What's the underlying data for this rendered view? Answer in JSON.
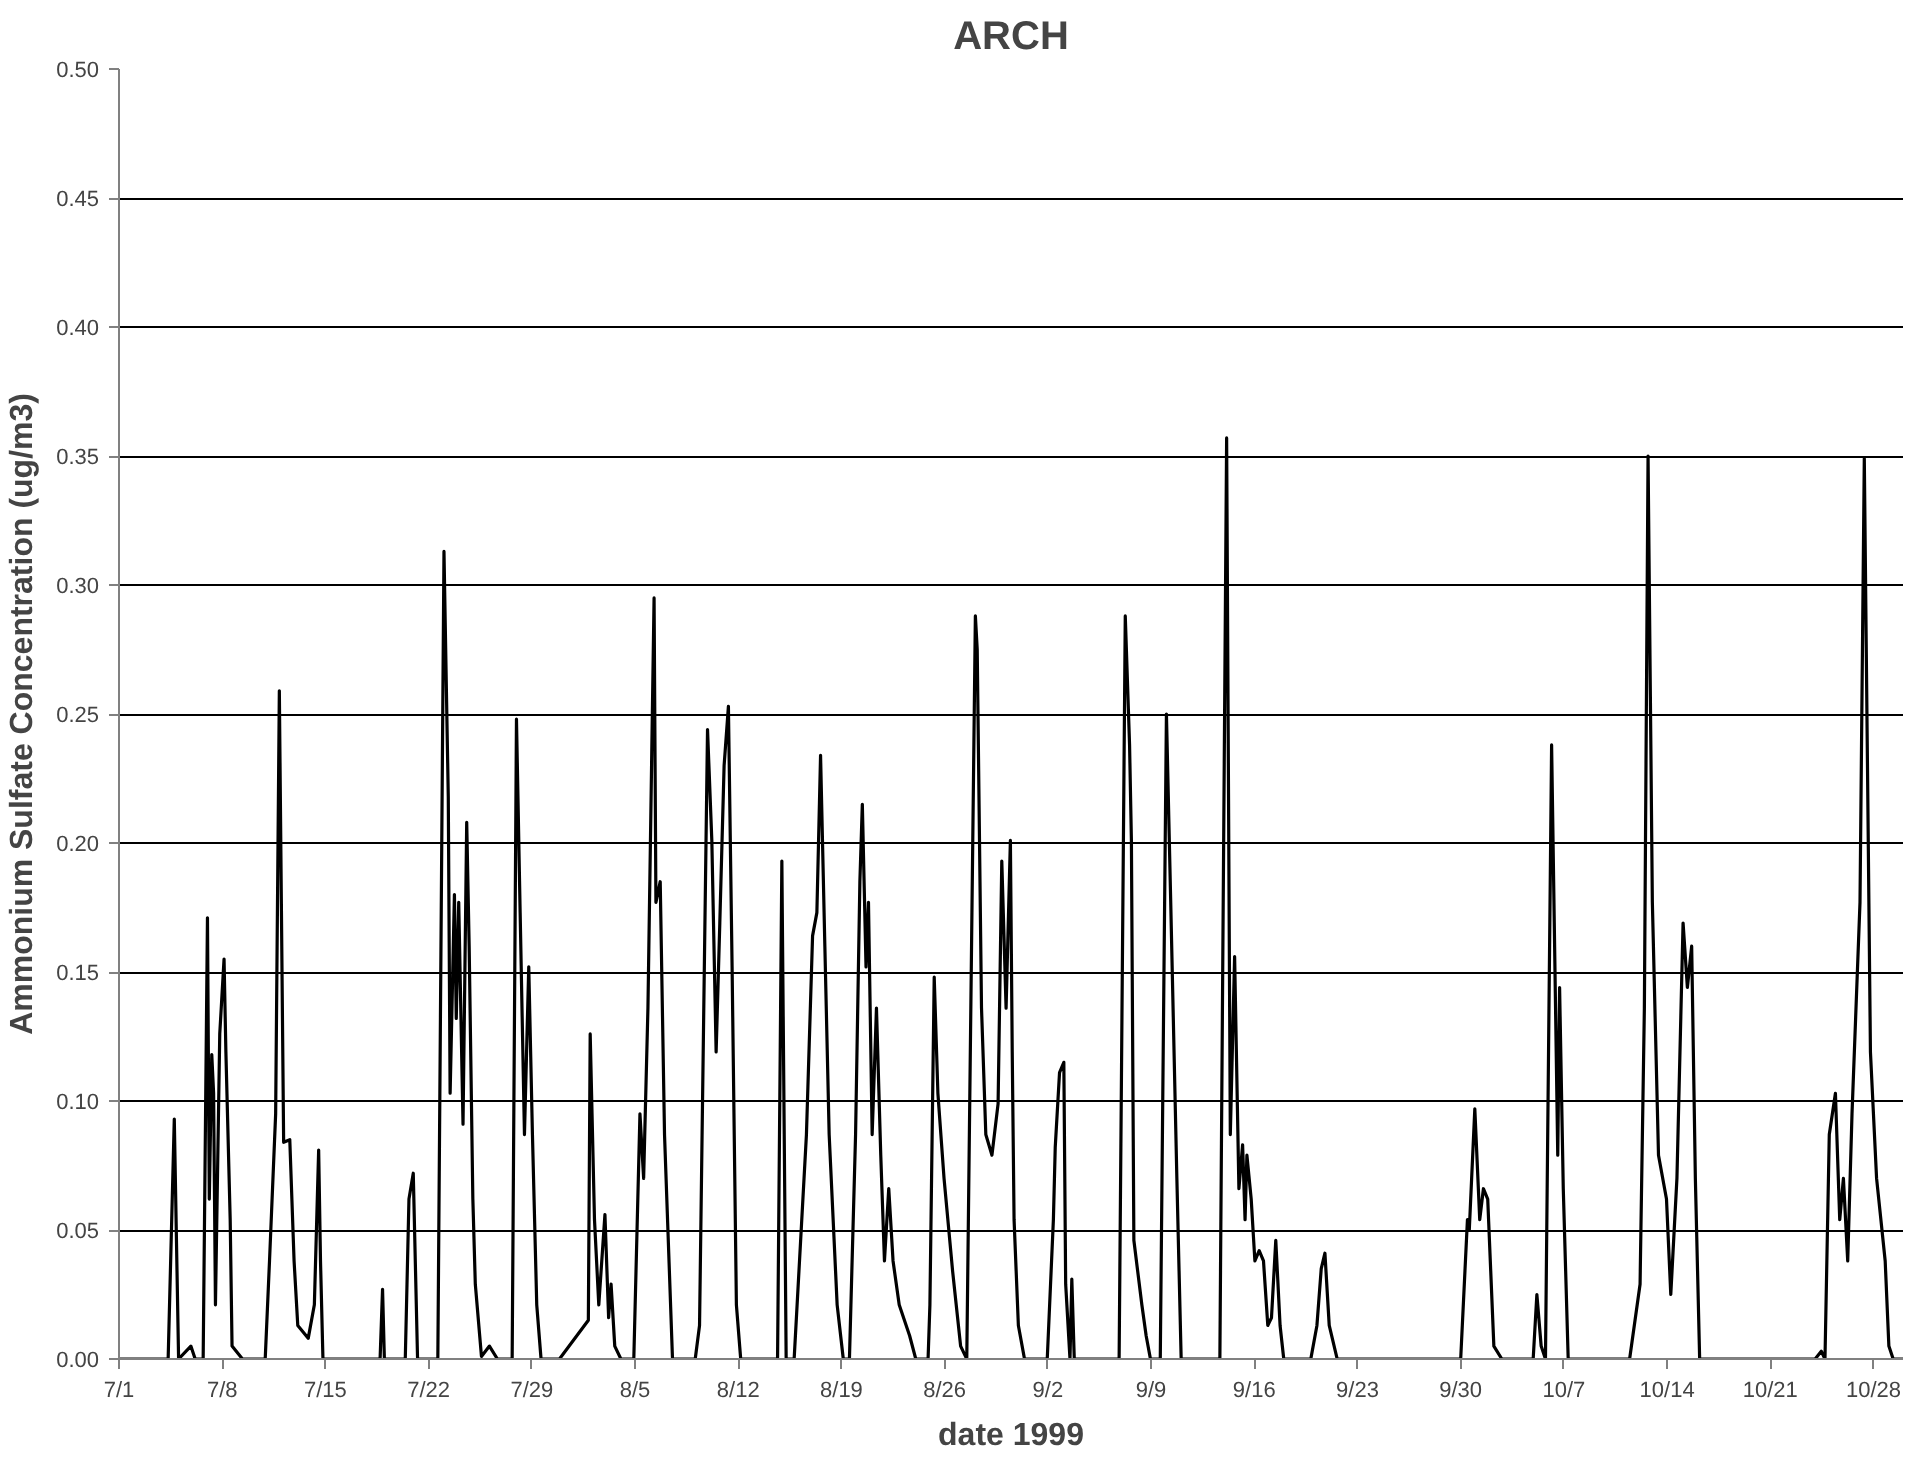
{
  "chart_data": {
    "type": "line",
    "title": "ARCH",
    "xlabel": "date 1999",
    "ylabel": "Ammonium Sulfate Concentration (ug/m3)",
    "x": [
      "1999-07-01T00:00",
      "1999-07-04T08:00",
      "1999-07-04T18:00",
      "1999-07-05T01:00",
      "1999-07-05T21:00",
      "1999-07-06T04:00",
      "1999-07-06T17:00",
      "1999-07-07T00:00",
      "1999-07-07T03:00",
      "1999-07-07T07:00",
      "1999-07-07T10:00",
      "1999-07-07T13:00",
      "1999-07-07T20:00",
      "1999-07-08T03:00",
      "1999-07-08T06:00",
      "1999-07-08T13:00",
      "1999-07-08T16:00",
      "1999-07-09T09:00",
      "1999-07-10T22:00",
      "1999-07-11T05:00",
      "1999-07-11T15:00",
      "1999-07-11T21:00",
      "1999-07-12T04:00",
      "1999-07-12T14:00",
      "1999-07-12T21:00",
      "1999-07-13T03:00",
      "1999-07-13T20:00",
      "1999-07-14T06:00",
      "1999-07-14T13:00",
      "1999-07-14T16:00",
      "1999-07-14T20:00",
      "1999-07-18T17:00",
      "1999-07-18T21:00",
      "1999-07-19T00:00",
      "1999-07-20T10:00",
      "1999-07-20T16:00",
      "1999-07-20T23:00",
      "1999-07-21T06:00",
      "1999-07-22T15:00",
      "1999-07-23T01:00",
      "1999-07-23T08:00",
      "1999-07-23T11:00",
      "1999-07-23T18:00",
      "1999-07-23T21:00",
      "1999-07-24T01:00",
      "1999-07-24T08:00",
      "1999-07-24T14:00",
      "1999-07-24T18:00",
      "1999-07-25T00:00",
      "1999-07-25T04:00",
      "1999-07-25T14:00",
      "1999-07-26T03:00",
      "1999-07-26T16:00",
      "1999-07-27T16:00",
      "1999-07-27T23:00",
      "1999-07-28T05:00",
      "1999-07-28T12:00",
      "1999-07-28T19:00",
      "1999-07-29T01:00",
      "1999-07-29T08:00",
      "1999-07-29T15:00",
      "1999-07-30T21:00",
      "1999-08-01T20:00",
      "1999-08-01T23:00",
      "1999-08-02T06:00",
      "1999-08-02T13:00",
      "1999-08-02T23:00",
      "1999-08-03T05:00",
      "1999-08-03T09:00",
      "1999-08-03T15:00",
      "1999-08-04T01:00",
      "1999-08-04T22:00",
      "1999-08-05T08:00",
      "1999-08-05T14:00",
      "1999-08-05T21:00",
      "1999-08-06T07:00",
      "1999-08-06T10:00",
      "1999-08-06T17:00",
      "1999-08-07T00:00",
      "1999-08-07T13:00",
      "1999-08-09T02:00",
      "1999-08-09T09:00",
      "1999-08-09T22:00",
      "1999-08-10T05:00",
      "1999-08-10T12:00",
      "1999-08-10T18:00",
      "1999-08-11T01:00",
      "1999-08-11T08:00",
      "1999-08-11T14:00",
      "1999-08-11T21:00",
      "1999-08-12T04:00",
      "1999-08-14T16:00",
      "1999-08-14T23:00",
      "1999-08-15T06:00",
      "1999-08-15T19:00",
      "1999-08-16T15:00",
      "1999-08-17T01:00",
      "1999-08-17T08:00",
      "1999-08-17T14:00",
      "1999-08-17T21:00",
      "1999-08-18T04:00",
      "1999-08-18T17:00",
      "1999-08-19T03:00",
      "1999-08-19T13:00",
      "1999-08-19T23:00",
      "1999-08-20T06:00",
      "1999-08-20T10:00",
      "1999-08-20T16:00",
      "1999-08-20T20:00",
      "1999-08-21T02:00",
      "1999-08-21T09:00",
      "1999-08-21T16:00",
      "1999-08-21T22:00",
      "1999-08-22T05:00",
      "1999-08-22T12:00",
      "1999-08-22T22:00",
      "1999-08-23T15:00",
      "1999-08-24T01:00",
      "1999-08-24T21:00",
      "1999-08-25T00:00",
      "1999-08-25T07:00",
      "1999-08-25T13:00",
      "1999-08-25T23:00",
      "1999-08-26T13:00",
      "1999-08-27T02:00",
      "1999-08-27T12:00",
      "1999-08-28T02:00",
      "1999-08-28T05:00",
      "1999-08-28T12:00",
      "1999-08-28T19:00",
      "1999-08-29T05:00",
      "1999-08-29T15:00",
      "1999-08-29T21:00",
      "1999-08-30T04:00",
      "1999-08-30T11:00",
      "1999-08-30T14:00",
      "1999-08-30T17:00",
      "1999-08-31T00:00",
      "1999-08-31T10:00",
      "1999-09-01T23:00",
      "1999-09-02T09:00",
      "1999-09-02T12:00",
      "1999-09-02T19:00",
      "1999-09-03T02:00",
      "1999-09-03T05:00",
      "1999-09-03T12:00",
      "1999-09-03T15:00",
      "1999-09-03T19:00",
      "1999-09-06T20:00",
      "1999-09-07T06:00",
      "1999-09-07T13:00",
      "1999-09-07T16:00",
      "1999-09-07T20:00",
      "1999-09-08T09:00",
      "1999-09-08T16:00",
      "1999-09-08T23:00",
      "1999-09-09T15:00",
      "1999-09-10T01:00",
      "1999-09-10T08:00",
      "1999-09-10T18:00",
      "1999-09-11T01:00",
      "1999-09-13T16:00",
      "1999-09-14T03:00",
      "1999-09-14T09:00",
      "1999-09-14T16:00",
      "1999-09-14T23:00",
      "1999-09-15T05:00",
      "1999-09-15T09:00",
      "1999-09-15T12:00",
      "1999-09-15T19:00",
      "1999-09-16T01:00",
      "1999-09-16T08:00",
      "1999-09-16T15:00",
      "1999-09-16T22:00",
      "1999-09-17T04:00",
      "1999-09-17T11:00",
      "1999-09-17T18:00",
      "1999-09-18T00:00",
      "1999-09-19T20:00",
      "1999-09-20T06:00",
      "1999-09-20T13:00",
      "1999-09-20T19:00",
      "1999-09-21T02:00",
      "1999-09-21T15:00",
      "1999-09-30T00:00",
      "1999-09-30T11:00",
      "1999-09-30T14:00",
      "1999-09-30T23:00",
      "1999-10-01T07:00",
      "1999-10-01T13:00",
      "1999-10-01T20:00",
      "1999-10-02T06:00",
      "1999-10-02T19:00",
      "1999-10-04T22:00",
      "1999-10-05T04:00",
      "1999-10-05T11:00",
      "1999-10-05T18:00",
      "1999-10-06T04:00",
      "1999-10-06T14:00",
      "1999-10-06T17:00",
      "1999-10-06T23:00",
      "1999-10-07T07:00",
      "1999-10-11T11:00",
      "1999-10-12T04:00",
      "1999-10-12T11:00",
      "1999-10-12T17:00",
      "1999-10-13T00:00",
      "1999-10-13T10:00",
      "1999-10-13T23:00",
      "1999-10-14T06:00",
      "1999-10-14T16:00",
      "1999-10-15T02:00",
      "1999-10-15T09:00",
      "1999-10-15T16:00",
      "1999-10-15T22:00",
      "1999-10-16T05:00",
      "1999-10-24T01:00",
      "1999-10-24T11:00",
      "1999-10-24T17:00",
      "1999-10-25T00:00",
      "1999-10-25T10:00",
      "1999-10-25T17:00",
      "1999-10-25T23:00",
      "1999-10-26T06:00",
      "1999-10-26T13:00",
      "1999-10-27T02:00",
      "1999-10-27T09:00",
      "1999-10-27T19:00",
      "1999-10-28T05:00",
      "1999-10-28T12:00",
      "1999-10-28T19:00",
      "1999-10-29T01:00",
      "1999-10-29T08:00",
      "1999-10-30T00:00"
    ],
    "series": [
      {
        "color": "#000000",
        "values": [
          0,
          0,
          0.093,
          0,
          0.005,
          0,
          0,
          0.171,
          0.062,
          0.118,
          0.103,
          0.021,
          0.126,
          0.155,
          0.119,
          0.054,
          0.005,
          0,
          0,
          0.038,
          0.095,
          0.259,
          0.084,
          0.085,
          0.038,
          0.013,
          0.008,
          0.021,
          0.081,
          0.038,
          0,
          0,
          0.027,
          0,
          0,
          0.062,
          0.072,
          0,
          0,
          0.313,
          0.218,
          0.103,
          0.18,
          0.132,
          0.177,
          0.091,
          0.208,
          0.16,
          0.062,
          0.029,
          0.001,
          0.005,
          0,
          0,
          0.248,
          0.173,
          0.087,
          0.152,
          0.087,
          0.021,
          0,
          0,
          0.015,
          0.126,
          0.054,
          0.021,
          0.056,
          0.016,
          0.029,
          0.005,
          0,
          0,
          0.095,
          0.07,
          0.136,
          0.295,
          0.177,
          0.185,
          0.087,
          0,
          0,
          0.013,
          0.244,
          0.201,
          0.119,
          0.169,
          0.23,
          0.253,
          0.152,
          0.021,
          0,
          0,
          0.193,
          0,
          0,
          0.087,
          0.164,
          0.173,
          0.234,
          0.16,
          0.087,
          0.021,
          0,
          0,
          0.087,
          0.185,
          0.215,
          0.152,
          0.177,
          0.087,
          0.136,
          0.079,
          0.038,
          0.066,
          0.038,
          0.021,
          0.009,
          0,
          0,
          0.021,
          0.148,
          0.103,
          0.07,
          0.034,
          0.005,
          0,
          0.288,
          0.275,
          0.136,
          0.087,
          0.079,
          0.099,
          0.193,
          0.136,
          0.201,
          0.119,
          0.054,
          0.013,
          0,
          0,
          0.054,
          0.082,
          0.111,
          0.115,
          0.029,
          0,
          0.031,
          0,
          0,
          0.288,
          0.238,
          0.201,
          0.046,
          0.021,
          0.009,
          0,
          0,
          0.25,
          0.177,
          0.07,
          0,
          0,
          0.357,
          0.087,
          0.156,
          0.066,
          0.083,
          0.054,
          0.079,
          0.062,
          0.038,
          0.042,
          0.038,
          0.013,
          0.016,
          0.046,
          0.013,
          0,
          0,
          0.013,
          0.035,
          0.041,
          0.013,
          0,
          0,
          0.054,
          0.05,
          0.097,
          0.054,
          0.066,
          0.062,
          0.005,
          0,
          0,
          0.025,
          0.005,
          0,
          0.238,
          0.079,
          0.144,
          0.066,
          0,
          0,
          0.029,
          0.136,
          0.35,
          0.177,
          0.079,
          0.062,
          0.025,
          0.07,
          0.169,
          0.144,
          0.16,
          0.07,
          0,
          0,
          0.003,
          0,
          0.087,
          0.103,
          0.054,
          0.07,
          0.038,
          0.095,
          0.177,
          0.349,
          0.119,
          0.07,
          0.054,
          0.038,
          0.005,
          0,
          0
        ]
      }
    ],
    "xlim": [
      "1999-07-01",
      "1999-10-30"
    ],
    "xticks": [
      {
        "value": "1999-07-01",
        "label": "7/1"
      },
      {
        "value": "1999-07-08",
        "label": "7/8"
      },
      {
        "value": "1999-07-15",
        "label": "7/15"
      },
      {
        "value": "1999-07-22",
        "label": "7/22"
      },
      {
        "value": "1999-07-29",
        "label": "7/29"
      },
      {
        "value": "1999-08-05",
        "label": "8/5"
      },
      {
        "value": "1999-08-12",
        "label": "8/12"
      },
      {
        "value": "1999-08-19",
        "label": "8/19"
      },
      {
        "value": "1999-08-26",
        "label": "8/26"
      },
      {
        "value": "1999-09-02",
        "label": "9/2"
      },
      {
        "value": "1999-09-09",
        "label": "9/9"
      },
      {
        "value": "1999-09-16",
        "label": "9/16"
      },
      {
        "value": "1999-09-23",
        "label": "9/23"
      },
      {
        "value": "1999-09-30",
        "label": "9/30"
      },
      {
        "value": "1999-10-07",
        "label": "10/7"
      },
      {
        "value": "1999-10-14",
        "label": "10/14"
      },
      {
        "value": "1999-10-21",
        "label": "10/21"
      },
      {
        "value": "1999-10-28",
        "label": "10/28"
      }
    ],
    "ylim": [
      0,
      0.5
    ],
    "yticks": [
      {
        "value": 0,
        "label": "0.00"
      },
      {
        "value": 0.05,
        "label": "0.05"
      },
      {
        "value": 0.1,
        "label": "0.10"
      },
      {
        "value": 0.15,
        "label": "0.15"
      },
      {
        "value": 0.2,
        "label": "0.20"
      },
      {
        "value": 0.25,
        "label": "0.25"
      },
      {
        "value": 0.3,
        "label": "0.30"
      },
      {
        "value": 0.35,
        "label": "0.35"
      },
      {
        "value": 0.4,
        "label": "0.40"
      },
      {
        "value": 0.45,
        "label": "0.45"
      },
      {
        "value": 0.5,
        "label": "0.50"
      }
    ],
    "grid": "y",
    "marker": "none",
    "line_style": "solid"
  }
}
